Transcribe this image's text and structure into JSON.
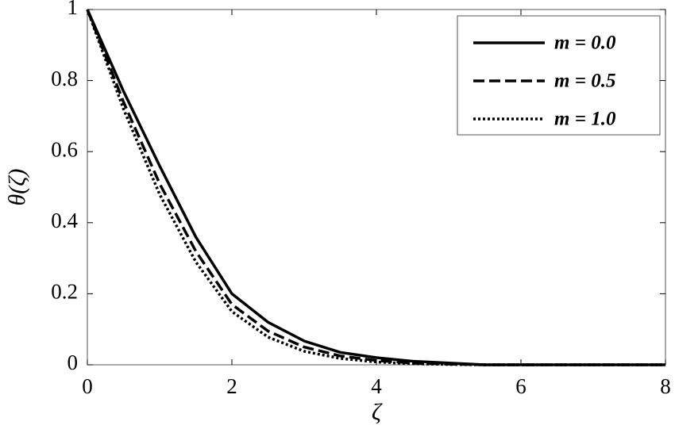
{
  "chart_data": {
    "type": "line",
    "x_label": "ζ",
    "y_label": "θ(ζ)",
    "x": [
      0,
      0.5,
      1,
      1.5,
      2,
      2.5,
      3,
      3.5,
      4,
      4.5,
      5,
      5.5,
      6,
      6.5,
      7,
      7.5,
      8
    ],
    "series": [
      {
        "name": "m = 0.0",
        "color": "#000000",
        "dash": "solid",
        "values": [
          1,
          0.77,
          0.56,
          0.36,
          0.2,
          0.12,
          0.067,
          0.035,
          0.02,
          0.01,
          0.005,
          0,
          0,
          0,
          0,
          0,
          0
        ]
      },
      {
        "name": "m = 0.5",
        "color": "#000000",
        "dash": "dashed",
        "values": [
          1,
          0.74,
          0.51,
          0.32,
          0.17,
          0.095,
          0.05,
          0.025,
          0.012,
          0.005,
          0.002,
          0,
          0,
          0,
          0,
          0,
          0
        ]
      },
      {
        "name": "m = 1.0",
        "color": "#000000",
        "dash": "dotted",
        "values": [
          1,
          0.72,
          0.48,
          0.29,
          0.15,
          0.078,
          0.038,
          0.018,
          0.008,
          0.003,
          0.001,
          0,
          0,
          0,
          0,
          0,
          0
        ]
      }
    ],
    "xlim": [
      0,
      8
    ],
    "xticks": [
      0,
      2,
      4,
      6,
      8
    ],
    "ylim": [
      0,
      1
    ],
    "yticks": [
      0,
      0.2,
      0.4,
      0.6,
      0.8,
      1
    ],
    "legend": "upper right"
  }
}
